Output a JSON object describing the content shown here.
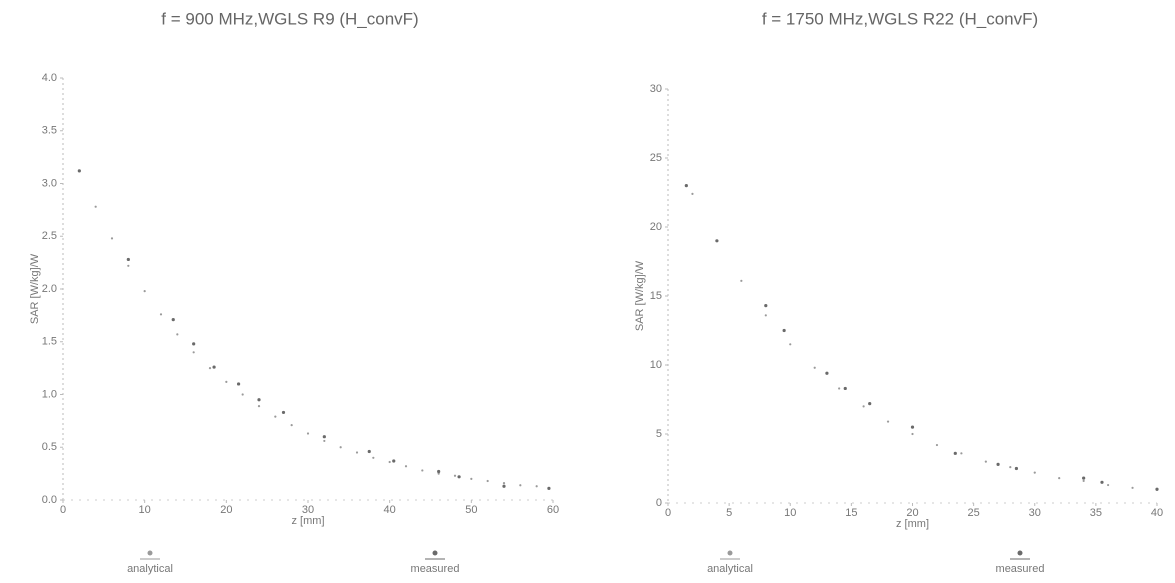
{
  "chart_data": [
    {
      "type": "scatter",
      "title": "f = 900 MHz,WGLS R9 (H_convF)",
      "x_label": "z [mm]",
      "y_label": "SAR [W/kg]/W",
      "xlim": [
        0,
        60
      ],
      "xticks": [
        0,
        10,
        20,
        30,
        40,
        50,
        60
      ],
      "ylim": [
        0,
        4.0
      ],
      "yticks": [
        {
          "value": 0,
          "label": "0.0"
        },
        0.5,
        {
          "value": 1,
          "label": "1.0"
        },
        1.5,
        {
          "value": 2,
          "label": "2.0"
        },
        2.5,
        {
          "value": 3,
          "label": "3.0"
        },
        3.5,
        {
          "value": 4,
          "label": "4.0"
        }
      ],
      "series": [
        {
          "name": "analytical",
          "color": "#9a9a9a",
          "x": [
            2,
            4,
            6,
            8,
            10,
            12,
            14,
            16,
            18,
            20,
            22,
            24,
            26,
            28,
            30,
            32,
            34,
            36,
            38,
            40,
            42,
            44,
            46,
            48,
            50,
            52,
            54,
            56,
            58
          ],
          "values": [
            3.12,
            2.78,
            2.48,
            2.22,
            1.98,
            1.76,
            1.57,
            1.4,
            1.25,
            1.12,
            1.0,
            0.89,
            0.79,
            0.71,
            0.63,
            0.56,
            0.5,
            0.45,
            0.4,
            0.36,
            0.32,
            0.28,
            0.25,
            0.23,
            0.2,
            0.18,
            0.16,
            0.14,
            0.13
          ]
        },
        {
          "name": "measured",
          "color": "#6a6a6a",
          "x": [
            2,
            8,
            13.5,
            16,
            18.5,
            21.5,
            24,
            27,
            32,
            37.5,
            40.5,
            46,
            48.5,
            54,
            59.5
          ],
          "values": [
            3.12,
            2.28,
            1.71,
            1.48,
            1.26,
            1.1,
            0.95,
            0.83,
            0.6,
            0.46,
            0.37,
            0.27,
            0.22,
            0.13,
            0.11
          ]
        }
      ]
    },
    {
      "type": "scatter",
      "title": "f = 1750 MHz,WGLS R22 (H_convF)",
      "x_label": "z [mm]",
      "y_label": "SAR [W/kg]/W",
      "xlim": [
        0,
        40
      ],
      "xticks": [
        0,
        5,
        10,
        15,
        20,
        25,
        30,
        35,
        40
      ],
      "ylim": [
        0,
        30
      ],
      "yticks": [
        0,
        5,
        10,
        15,
        20,
        25,
        30
      ],
      "series": [
        {
          "name": "analytical",
          "color": "#9a9a9a",
          "x": [
            2,
            4,
            6,
            8,
            10,
            12,
            14,
            16,
            18,
            20,
            22,
            24,
            26,
            28,
            30,
            32,
            34,
            36,
            38,
            40
          ],
          "values": [
            22.4,
            19.0,
            16.1,
            13.6,
            11.5,
            9.8,
            8.3,
            7.0,
            5.9,
            5.0,
            4.2,
            3.6,
            3.0,
            2.6,
            2.2,
            1.8,
            1.6,
            1.3,
            1.1,
            0.95
          ]
        },
        {
          "name": "measured",
          "color": "#6a6a6a",
          "x": [
            1.5,
            4,
            8,
            9.5,
            13,
            14.5,
            16.5,
            20,
            23.5,
            27,
            28.5,
            34,
            35.5,
            40
          ],
          "values": [
            23.0,
            19.0,
            14.3,
            12.5,
            9.4,
            8.3,
            7.2,
            5.5,
            3.6,
            2.8,
            2.5,
            1.8,
            1.5,
            1.0
          ]
        }
      ]
    }
  ]
}
